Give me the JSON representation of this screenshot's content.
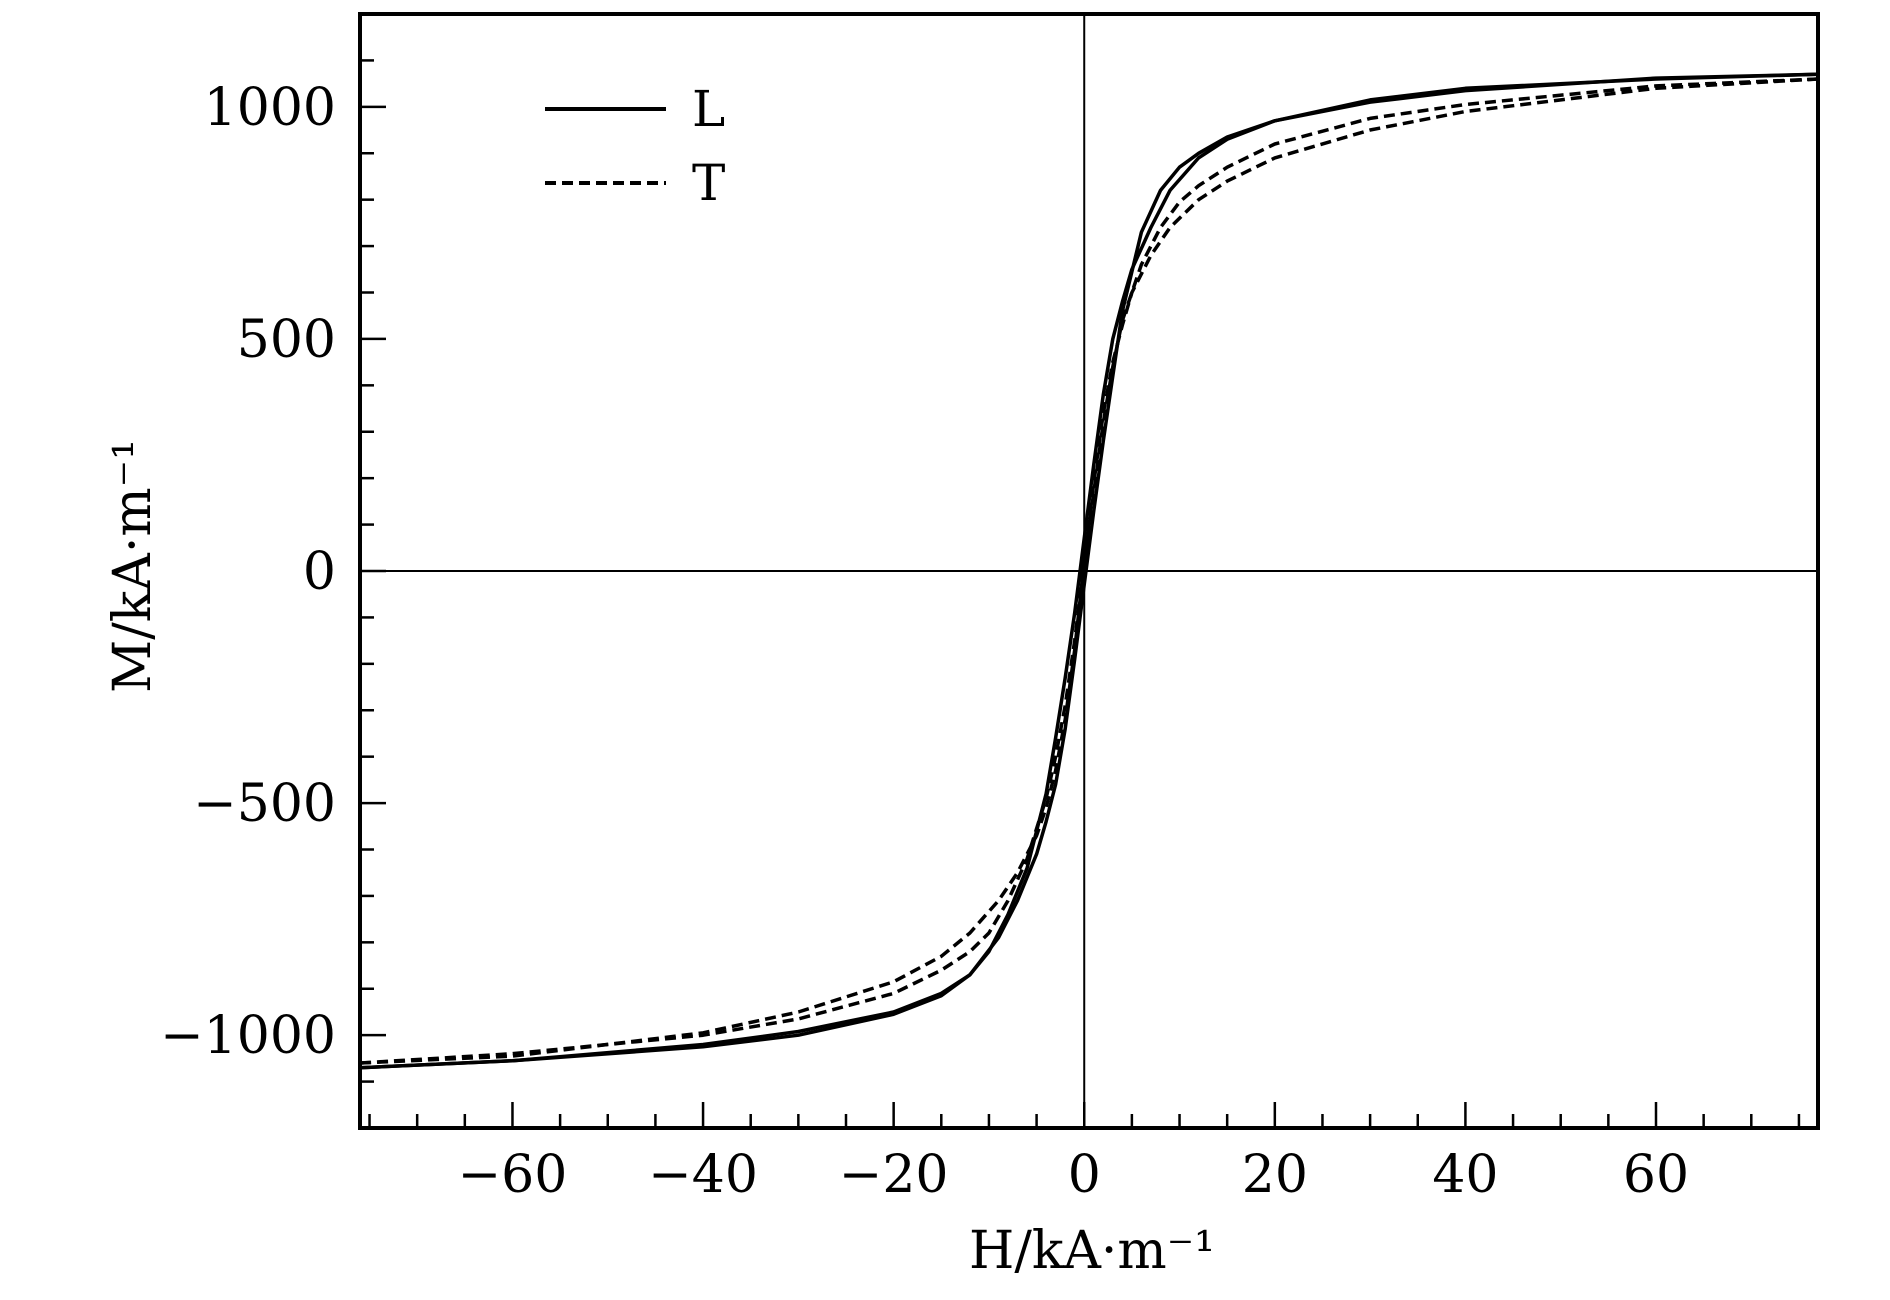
{
  "chart_data": {
    "type": "line",
    "xlabel": "H/kA·m⁻¹",
    "ylabel": "M/kA·m⁻¹",
    "xlim": [
      -76,
      77
    ],
    "ylim": [
      -1200,
      1200
    ],
    "xticks": [
      -60,
      -40,
      -20,
      0,
      20,
      40,
      60
    ],
    "xtick_labels": [
      "−60",
      "−40",
      "−20",
      "0",
      "20",
      "40",
      "60"
    ],
    "yticks": [
      -1000,
      -500,
      0,
      500,
      1000
    ],
    "ytick_labels": [
      "−1000",
      "−500",
      "0",
      "500",
      "1000"
    ],
    "grid": false,
    "zero_lines": true,
    "legend_position": "top-left",
    "series": [
      {
        "name": "L",
        "style": "solid",
        "branches": [
          {
            "x": [
              -76,
              -60,
              -40,
              -30,
              -20,
              -15,
              -12,
              -10,
              -8,
              -6,
              -4,
              -3,
              -2,
              -1,
              0,
              1,
              2,
              3,
              4,
              5,
              7,
              9,
              12,
              15,
              20,
              30,
              40,
              60,
              77
            ],
            "y": [
              -1070,
              -1055,
              -1020,
              -992,
              -950,
              -910,
              -870,
              -820,
              -740,
              -640,
              -480,
              -360,
              -230,
              -90,
              70,
              230,
              380,
              500,
              580,
              650,
              740,
              820,
              890,
              930,
              970,
              1015,
              1040,
              1060,
              1070
            ]
          },
          {
            "x": [
              77,
              60,
              40,
              30,
              20,
              15,
              12,
              10,
              8,
              6,
              4,
              3,
              2,
              1,
              0,
              -1,
              -2,
              -3,
              -4,
              -5,
              -7,
              -9,
              -12,
              -15,
              -20,
              -30,
              -40,
              -60,
              -76
            ],
            "y": [
              1070,
              1062,
              1035,
              1010,
              970,
              935,
              900,
              870,
              820,
              730,
              560,
              420,
              280,
              130,
              -30,
              -190,
              -340,
              -460,
              -540,
              -610,
              -710,
              -790,
              -870,
              -915,
              -955,
              -1000,
              -1025,
              -1055,
              -1070
            ]
          }
        ]
      },
      {
        "name": "T",
        "style": "dashed",
        "branches": [
          {
            "x": [
              -76,
              -60,
              -40,
              -30,
              -20,
              -15,
              -12,
              -10,
              -8,
              -6,
              -4,
              -3,
              -2,
              -1,
              0,
              1,
              2,
              3,
              4,
              5,
              7,
              9,
              12,
              15,
              20,
              30,
              40,
              60,
              77
            ],
            "y": [
              -1060,
              -1040,
              -1000,
              -965,
              -910,
              -860,
              -820,
              -780,
              -710,
              -620,
              -490,
              -400,
              -290,
              -150,
              20,
              190,
              340,
              450,
              530,
              600,
              680,
              740,
              800,
              840,
              890,
              950,
              990,
              1040,
              1060
            ]
          },
          {
            "x": [
              77,
              60,
              40,
              30,
              20,
              15,
              12,
              10,
              8,
              6,
              4,
              3,
              2,
              1,
              0,
              -1,
              -2,
              -3,
              -4,
              -5,
              -7,
              -9,
              -12,
              -15,
              -20,
              -30,
              -40,
              -60,
              -76
            ],
            "y": [
              1060,
              1045,
              1005,
              975,
              920,
              870,
              830,
              795,
              740,
              660,
              540,
              440,
              320,
              170,
              20,
              -170,
              -320,
              -430,
              -510,
              -570,
              -650,
              -710,
              -780,
              -830,
              -885,
              -950,
              -995,
              -1045,
              -1060
            ]
          }
        ]
      }
    ]
  }
}
